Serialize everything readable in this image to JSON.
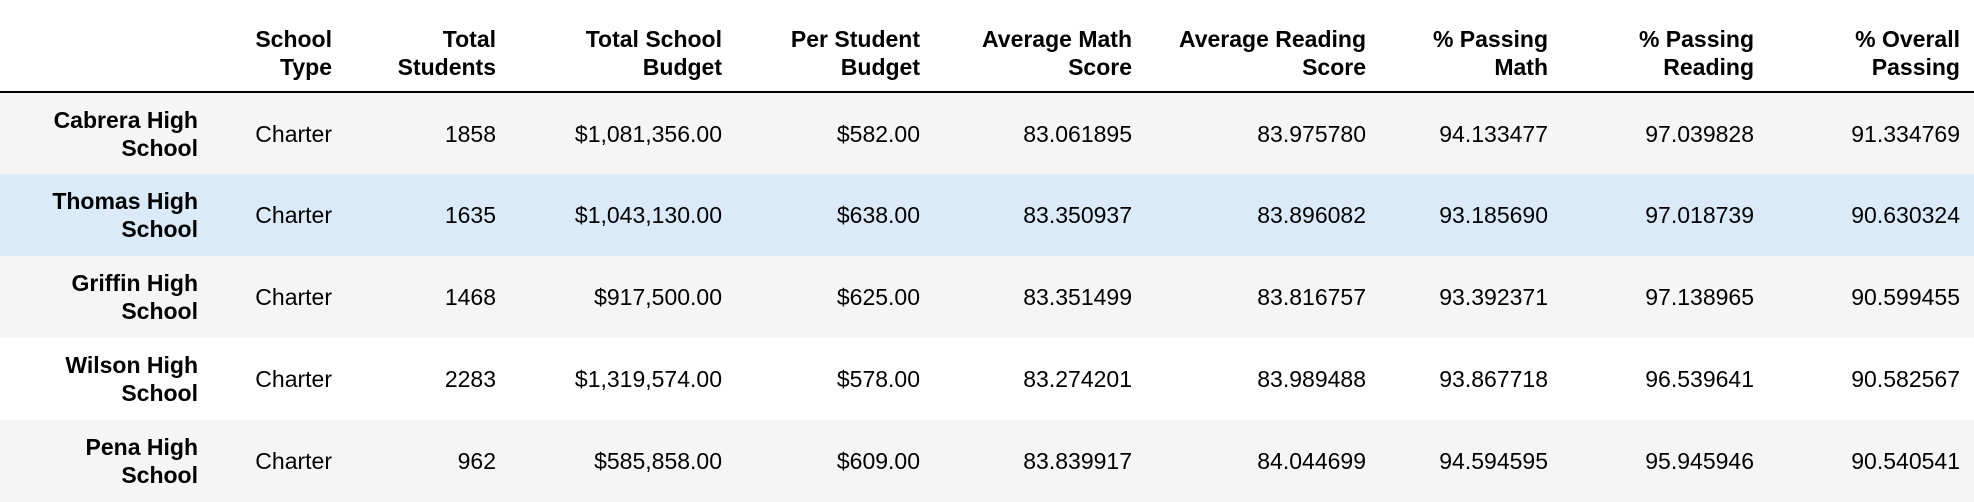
{
  "table": {
    "columns": [
      {
        "label": "School Type",
        "line1": "School",
        "line2": "Type"
      },
      {
        "label": "Total Students",
        "line1": "Total",
        "line2": "Students"
      },
      {
        "label": "Total School Budget",
        "line1": "Total School",
        "line2": "Budget"
      },
      {
        "label": "Per Student Budget",
        "line1": "Per Student",
        "line2": "Budget"
      },
      {
        "label": "Average Math Score",
        "line1": "Average Math",
        "line2": "Score"
      },
      {
        "label": "Average Reading Score",
        "line1": "Average Reading",
        "line2": "Score"
      },
      {
        "label": "% Passing Math",
        "line1": "% Passing",
        "line2": "Math"
      },
      {
        "label": "% Passing Reading",
        "line1": "% Passing",
        "line2": "Reading"
      },
      {
        "label": "% Overall Passing",
        "line1": "% Overall",
        "line2": "Passing"
      }
    ],
    "rows": [
      {
        "school": "Cabrera High School",
        "school_line1": "Cabrera High",
        "school_line2": "School",
        "cells": [
          "Charter",
          "1858",
          "$1,081,356.00",
          "$582.00",
          "83.061895",
          "83.975780",
          "94.133477",
          "97.039828",
          "91.334769"
        ]
      },
      {
        "school": "Thomas High School",
        "school_line1": "Thomas High",
        "school_line2": "School",
        "cells": [
          "Charter",
          "1635",
          "$1,043,130.00",
          "$638.00",
          "83.350937",
          "83.896082",
          "93.185690",
          "97.018739",
          "90.630324"
        ]
      },
      {
        "school": "Griffin High School",
        "school_line1": "Griffin High",
        "school_line2": "School",
        "cells": [
          "Charter",
          "1468",
          "$917,500.00",
          "$625.00",
          "83.351499",
          "83.816757",
          "93.392371",
          "97.138965",
          "90.599455"
        ]
      },
      {
        "school": "Wilson High School",
        "school_line1": "Wilson High",
        "school_line2": "School",
        "cells": [
          "Charter",
          "2283",
          "$1,319,574.00",
          "$578.00",
          "83.274201",
          "83.989488",
          "93.867718",
          "96.539641",
          "90.582567"
        ]
      },
      {
        "school": "Pena High School",
        "school_line1": "Pena High",
        "school_line2": "School",
        "cells": [
          "Charter",
          "962",
          "$585,858.00",
          "$609.00",
          "83.839917",
          "84.044699",
          "94.594595",
          "95.945946",
          "90.540541"
        ]
      }
    ]
  },
  "colors": {
    "odd_row": "#f5f5f5",
    "even_row": "#ffffff",
    "hover_row": "#dbeaf9",
    "header_rule": "#000000"
  }
}
